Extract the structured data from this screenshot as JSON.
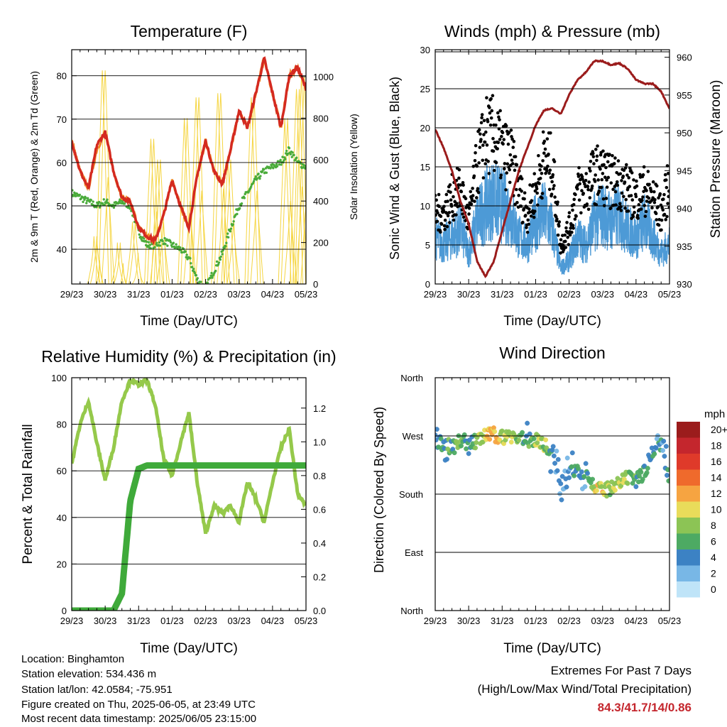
{
  "x_ticks": [
    "29/23",
    "30/23",
    "31/23",
    "01/23",
    "02/23",
    "03/23",
    "04/23",
    "05/23"
  ],
  "panels": {
    "temperature": {
      "title": "Temperature (F)",
      "xlabel": "Time (Day/UTC)",
      "ylabel_left": "2m & 9m T (Red, Orange) & 2m Td (Green)",
      "ylabel_right": "Solar Insolation (Yellow)"
    },
    "winds": {
      "title": "Winds (mph) & Pressure (mb)",
      "xlabel": "Time (Day/UTC)",
      "ylabel_left": "Sonic Wind & Gust (Blue, Black)",
      "ylabel_right": "Station Pressure (Maroon)"
    },
    "humidity": {
      "title": "Relative Humidity (%) & Precipitation (in)",
      "xlabel": "Time (Day/UTC)",
      "ylabel_left": "Percent & Total Rainfall"
    },
    "direction": {
      "title": "Wind Direction",
      "xlabel": "Time (Day/UTC)",
      "ylabel_left": "Direction (Colored By Speed)",
      "colorbar_title": "mph",
      "colorbar_labels": [
        "20+",
        "18",
        "16",
        "14",
        "12",
        "10",
        "8",
        "6",
        "4",
        "2",
        "0"
      ]
    }
  },
  "chart_data": [
    {
      "type": "line",
      "title": "Temperature (F)",
      "xlabel": "Time (Day/UTC)",
      "ylabel": "2m & 9m T (Red, Orange) & 2m Td (Green)",
      "ylabel_right": "Solar Insolation (Yellow)",
      "x_days": [
        0,
        0.25,
        0.5,
        0.75,
        1,
        1.25,
        1.5,
        1.75,
        2,
        2.25,
        2.5,
        2.75,
        3,
        3.25,
        3.5,
        3.75,
        4,
        4.25,
        4.5,
        4.75,
        5,
        5.25,
        5.5,
        5.75,
        6,
        6.25,
        6.5,
        6.75,
        7
      ],
      "ylim": [
        32,
        86
      ],
      "yticks": [
        40,
        50,
        60,
        70,
        80
      ],
      "ylim_right": [
        0,
        1130
      ],
      "yticks_right": [
        0,
        200,
        400,
        600,
        800,
        1000
      ],
      "series": [
        {
          "name": "2m T",
          "color": "#d42a20",
          "values": [
            65,
            58,
            54,
            64,
            67,
            58,
            52,
            51,
            45,
            43,
            42,
            48,
            56,
            50,
            45,
            57,
            65,
            58,
            55,
            63,
            72,
            68,
            76,
            84,
            76,
            68,
            80,
            82,
            77
          ]
        },
        {
          "name": "9m T",
          "color": "#f08a2a",
          "values": [
            65,
            58,
            54,
            63,
            67,
            58,
            52,
            51,
            45,
            43,
            42,
            48,
            56,
            50,
            45,
            57,
            65,
            58,
            55,
            63,
            72,
            68,
            76,
            84,
            76,
            68,
            80,
            82,
            77
          ]
        },
        {
          "name": "2m Td",
          "color": "#4aab3a",
          "values": [
            53,
            52,
            51,
            50,
            51,
            50,
            51,
            50,
            44,
            41,
            41,
            42,
            41,
            40,
            38,
            33,
            31,
            35,
            39,
            45,
            50,
            53,
            56,
            58,
            59,
            60,
            63,
            60,
            59
          ]
        }
      ],
      "solar_series": {
        "name": "Solar Insolation",
        "color": "#f5d541",
        "peaks": [
          [
            0.75,
            230
          ],
          [
            1.0,
            1030
          ],
          [
            1.45,
            200
          ],
          [
            1.9,
            300
          ],
          [
            2.45,
            700
          ],
          [
            2.65,
            600
          ],
          [
            3.45,
            800
          ],
          [
            3.8,
            900
          ],
          [
            4.45,
            920
          ],
          [
            4.75,
            600
          ],
          [
            5.45,
            900
          ],
          [
            6.45,
            800
          ],
          [
            6.8,
            940
          ],
          [
            6.95,
            1000
          ]
        ]
      }
    },
    {
      "type": "scatter",
      "title": "Winds (mph) & Pressure (mb)",
      "xlabel": "Time (Day/UTC)",
      "ylabel": "Sonic Wind & Gust (Blue, Black)",
      "ylabel_right": "Station Pressure (Maroon)",
      "ylim": [
        0,
        30
      ],
      "yticks": [
        0,
        5,
        10,
        15,
        20,
        25,
        30
      ],
      "ylim_right": [
        930,
        961
      ],
      "yticks_right": [
        930,
        935,
        940,
        945,
        950,
        955,
        960
      ],
      "x_days": [
        0,
        0.25,
        0.5,
        0.75,
        1,
        1.25,
        1.5,
        1.75,
        2,
        2.25,
        2.5,
        2.75,
        3,
        3.25,
        3.5,
        3.75,
        4,
        4.25,
        4.5,
        4.75,
        5,
        5.25,
        5.5,
        5.75,
        6,
        6.25,
        6.5,
        6.75,
        7
      ],
      "series": [
        {
          "name": "Sonic Wind",
          "color": "#4d9ad6",
          "values": [
            6,
            5,
            6,
            7,
            4,
            8,
            10,
            11,
            10,
            9,
            6,
            5,
            8,
            9,
            7,
            2,
            3,
            6,
            5,
            8,
            9,
            8,
            9,
            7,
            6,
            8,
            6,
            4,
            5
          ]
        },
        {
          "name": "Gust",
          "color": "#000000",
          "values": [
            9,
            9,
            11,
            12,
            8,
            15,
            19,
            19,
            17,
            16,
            12,
            9,
            12,
            16,
            15,
            5,
            7,
            12,
            12,
            14,
            14,
            13,
            13,
            12,
            11,
            12,
            11,
            9,
            13
          ]
        },
        {
          "name": "Station Pressure",
          "color": "#9b1c1c",
          "values": [
            950.5,
            948,
            945,
            941,
            938,
            933,
            931,
            933,
            937,
            941,
            945,
            948,
            951,
            953,
            953.2,
            952.5,
            955,
            957,
            958,
            959.5,
            959.5,
            959,
            959.2,
            958.5,
            957,
            956.5,
            956.5,
            955.5,
            953.2
          ]
        }
      ]
    },
    {
      "type": "line",
      "title": "Relative Humidity (%) & Precipitation (in)",
      "xlabel": "Time (Day/UTC)",
      "ylabel": "Percent & Total Rainfall",
      "ylim": [
        0,
        100
      ],
      "yticks": [
        0,
        20,
        40,
        60,
        80,
        100
      ],
      "ylim_right": [
        0,
        1.38
      ],
      "yticks_right": [
        0.0,
        0.2,
        0.4,
        0.6,
        0.8,
        1.0,
        1.2
      ],
      "x_days": [
        0,
        0.25,
        0.5,
        0.75,
        1,
        1.25,
        1.5,
        1.75,
        2,
        2.25,
        2.5,
        2.75,
        3,
        3.25,
        3.5,
        3.75,
        4,
        4.25,
        4.5,
        4.75,
        5,
        5.25,
        5.5,
        5.75,
        6,
        6.25,
        6.5,
        6.75,
        7
      ],
      "series": [
        {
          "name": "Relative Humidity",
          "color": "#95c94b",
          "values": [
            63,
            80,
            90,
            72,
            56,
            70,
            90,
            99,
            97,
            99,
            88,
            65,
            58,
            72,
            85,
            55,
            33,
            45,
            42,
            45,
            38,
            55,
            48,
            38,
            55,
            70,
            78,
            50,
            45
          ]
        },
        {
          "name": "Total Rainfall",
          "color": "#3faa3a",
          "values_in": [
            0,
            0,
            0,
            0,
            0,
            0,
            0.1,
            0.65,
            0.84,
            0.86,
            0.86,
            0.86,
            0.86,
            0.86,
            0.86,
            0.86,
            0.86,
            0.86,
            0.86,
            0.86,
            0.86,
            0.86,
            0.86,
            0.86,
            0.86,
            0.86,
            0.86,
            0.86,
            0.86
          ]
        }
      ]
    },
    {
      "type": "scatter",
      "title": "Wind Direction",
      "xlabel": "Time (Day/UTC)",
      "ylabel": "Direction (Colored By Speed)",
      "yticks": [
        "North",
        "East",
        "South",
        "West",
        "North"
      ],
      "ylim": [
        0,
        360
      ],
      "x_days": [
        0,
        0.25,
        0.5,
        0.75,
        1,
        1.25,
        1.5,
        1.75,
        2,
        2.25,
        2.5,
        2.75,
        3,
        3.25,
        3.5,
        3.75,
        4,
        4.25,
        4.5,
        4.75,
        5,
        5.25,
        5.5,
        5.75,
        6,
        6.25,
        6.5,
        6.75,
        7
      ],
      "direction_deg": [
        255,
        260,
        250,
        265,
        258,
        262,
        270,
        272,
        268,
        270,
        268,
        262,
        265,
        258,
        240,
        200,
        210,
        220,
        215,
        190,
        185,
        188,
        195,
        205,
        200,
        215,
        245,
        260,
        200
      ],
      "speed_mph": [
        5,
        5,
        6,
        7,
        4,
        8,
        11,
        11,
        10,
        9,
        7,
        5,
        8,
        8,
        5,
        2,
        3,
        5,
        4,
        10,
        10,
        8,
        9,
        7,
        6,
        6,
        5,
        4,
        6
      ],
      "colorbar": {
        "title": "mph",
        "levels": [
          "20+",
          "18",
          "16",
          "14",
          "12",
          "10",
          "8",
          "6",
          "4",
          "2",
          "0"
        ],
        "colors": [
          "#9b1c1c",
          "#c4262d",
          "#df3a2a",
          "#ef6a2c",
          "#f6a441",
          "#e9dc5a",
          "#8cc455",
          "#4daa63",
          "#3c82c4",
          "#78b7e6",
          "#bfe4f8"
        ]
      }
    }
  ],
  "info": {
    "location": "Location: Binghamton",
    "elevation": "Station elevation: 534.436 m",
    "latlon": "Station lat/lon: 42.0584; -75.951",
    "created": "Figure created on Thu, 2025-06-05, at 23:49 UTC",
    "timestamp": "Most recent data timestamp: 2025/06/05 23:15:00"
  },
  "extremes": {
    "heading": "Extremes For Past 7 Days",
    "subheading": "(High/Low/Max Wind/Total Precipitation)",
    "values": "84.3/41.7/14/0.86"
  }
}
